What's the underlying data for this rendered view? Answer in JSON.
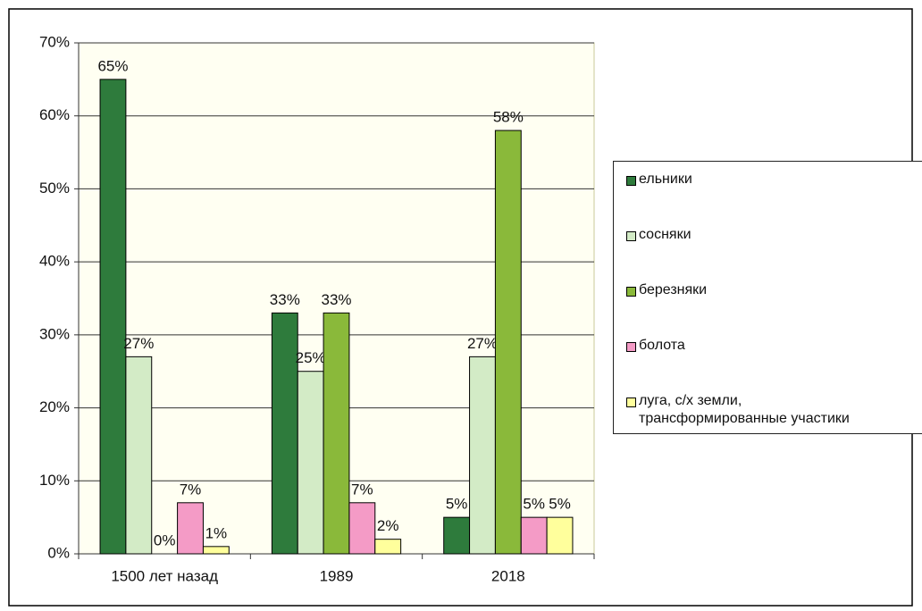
{
  "chart_data": {
    "type": "bar",
    "categories": [
      "1500 лет назад",
      "1989",
      "2018"
    ],
    "series": [
      {
        "name": "ельники",
        "color": "#2e7b3c",
        "values": [
          65,
          33,
          5
        ],
        "value_labels": [
          "65%",
          "33%",
          "5%"
        ]
      },
      {
        "name": "сосняки",
        "color": "#d3ebc6",
        "values": [
          27,
          25,
          27
        ],
        "value_labels": [
          "27%",
          "25%",
          "27%"
        ]
      },
      {
        "name": "березняки",
        "color": "#8ab93a",
        "values": [
          0,
          33,
          58
        ],
        "value_labels": [
          "0%",
          "33%",
          "58%"
        ]
      },
      {
        "name": "болота",
        "color": "#f49bc6",
        "values": [
          7,
          7,
          5
        ],
        "value_labels": [
          "7%",
          "7%",
          "5%"
        ]
      },
      {
        "name": "луга, с/х земли, трансформированные участики",
        "color": "#ffff9c",
        "values": [
          1,
          2,
          5
        ],
        "value_labels": [
          "1%",
          "2%",
          "5%"
        ]
      }
    ],
    "ylim": [
      0,
      70
    ],
    "yticks": [
      {
        "value": 0,
        "label": "0%"
      },
      {
        "value": 10,
        "label": "10%"
      },
      {
        "value": 20,
        "label": "20%"
      },
      {
        "value": 30,
        "label": "30%"
      },
      {
        "value": 40,
        "label": "40%"
      },
      {
        "value": 50,
        "label": "50%"
      },
      {
        "value": 60,
        "label": "60%"
      },
      {
        "value": 70,
        "label": "70%"
      }
    ],
    "grid": true
  }
}
